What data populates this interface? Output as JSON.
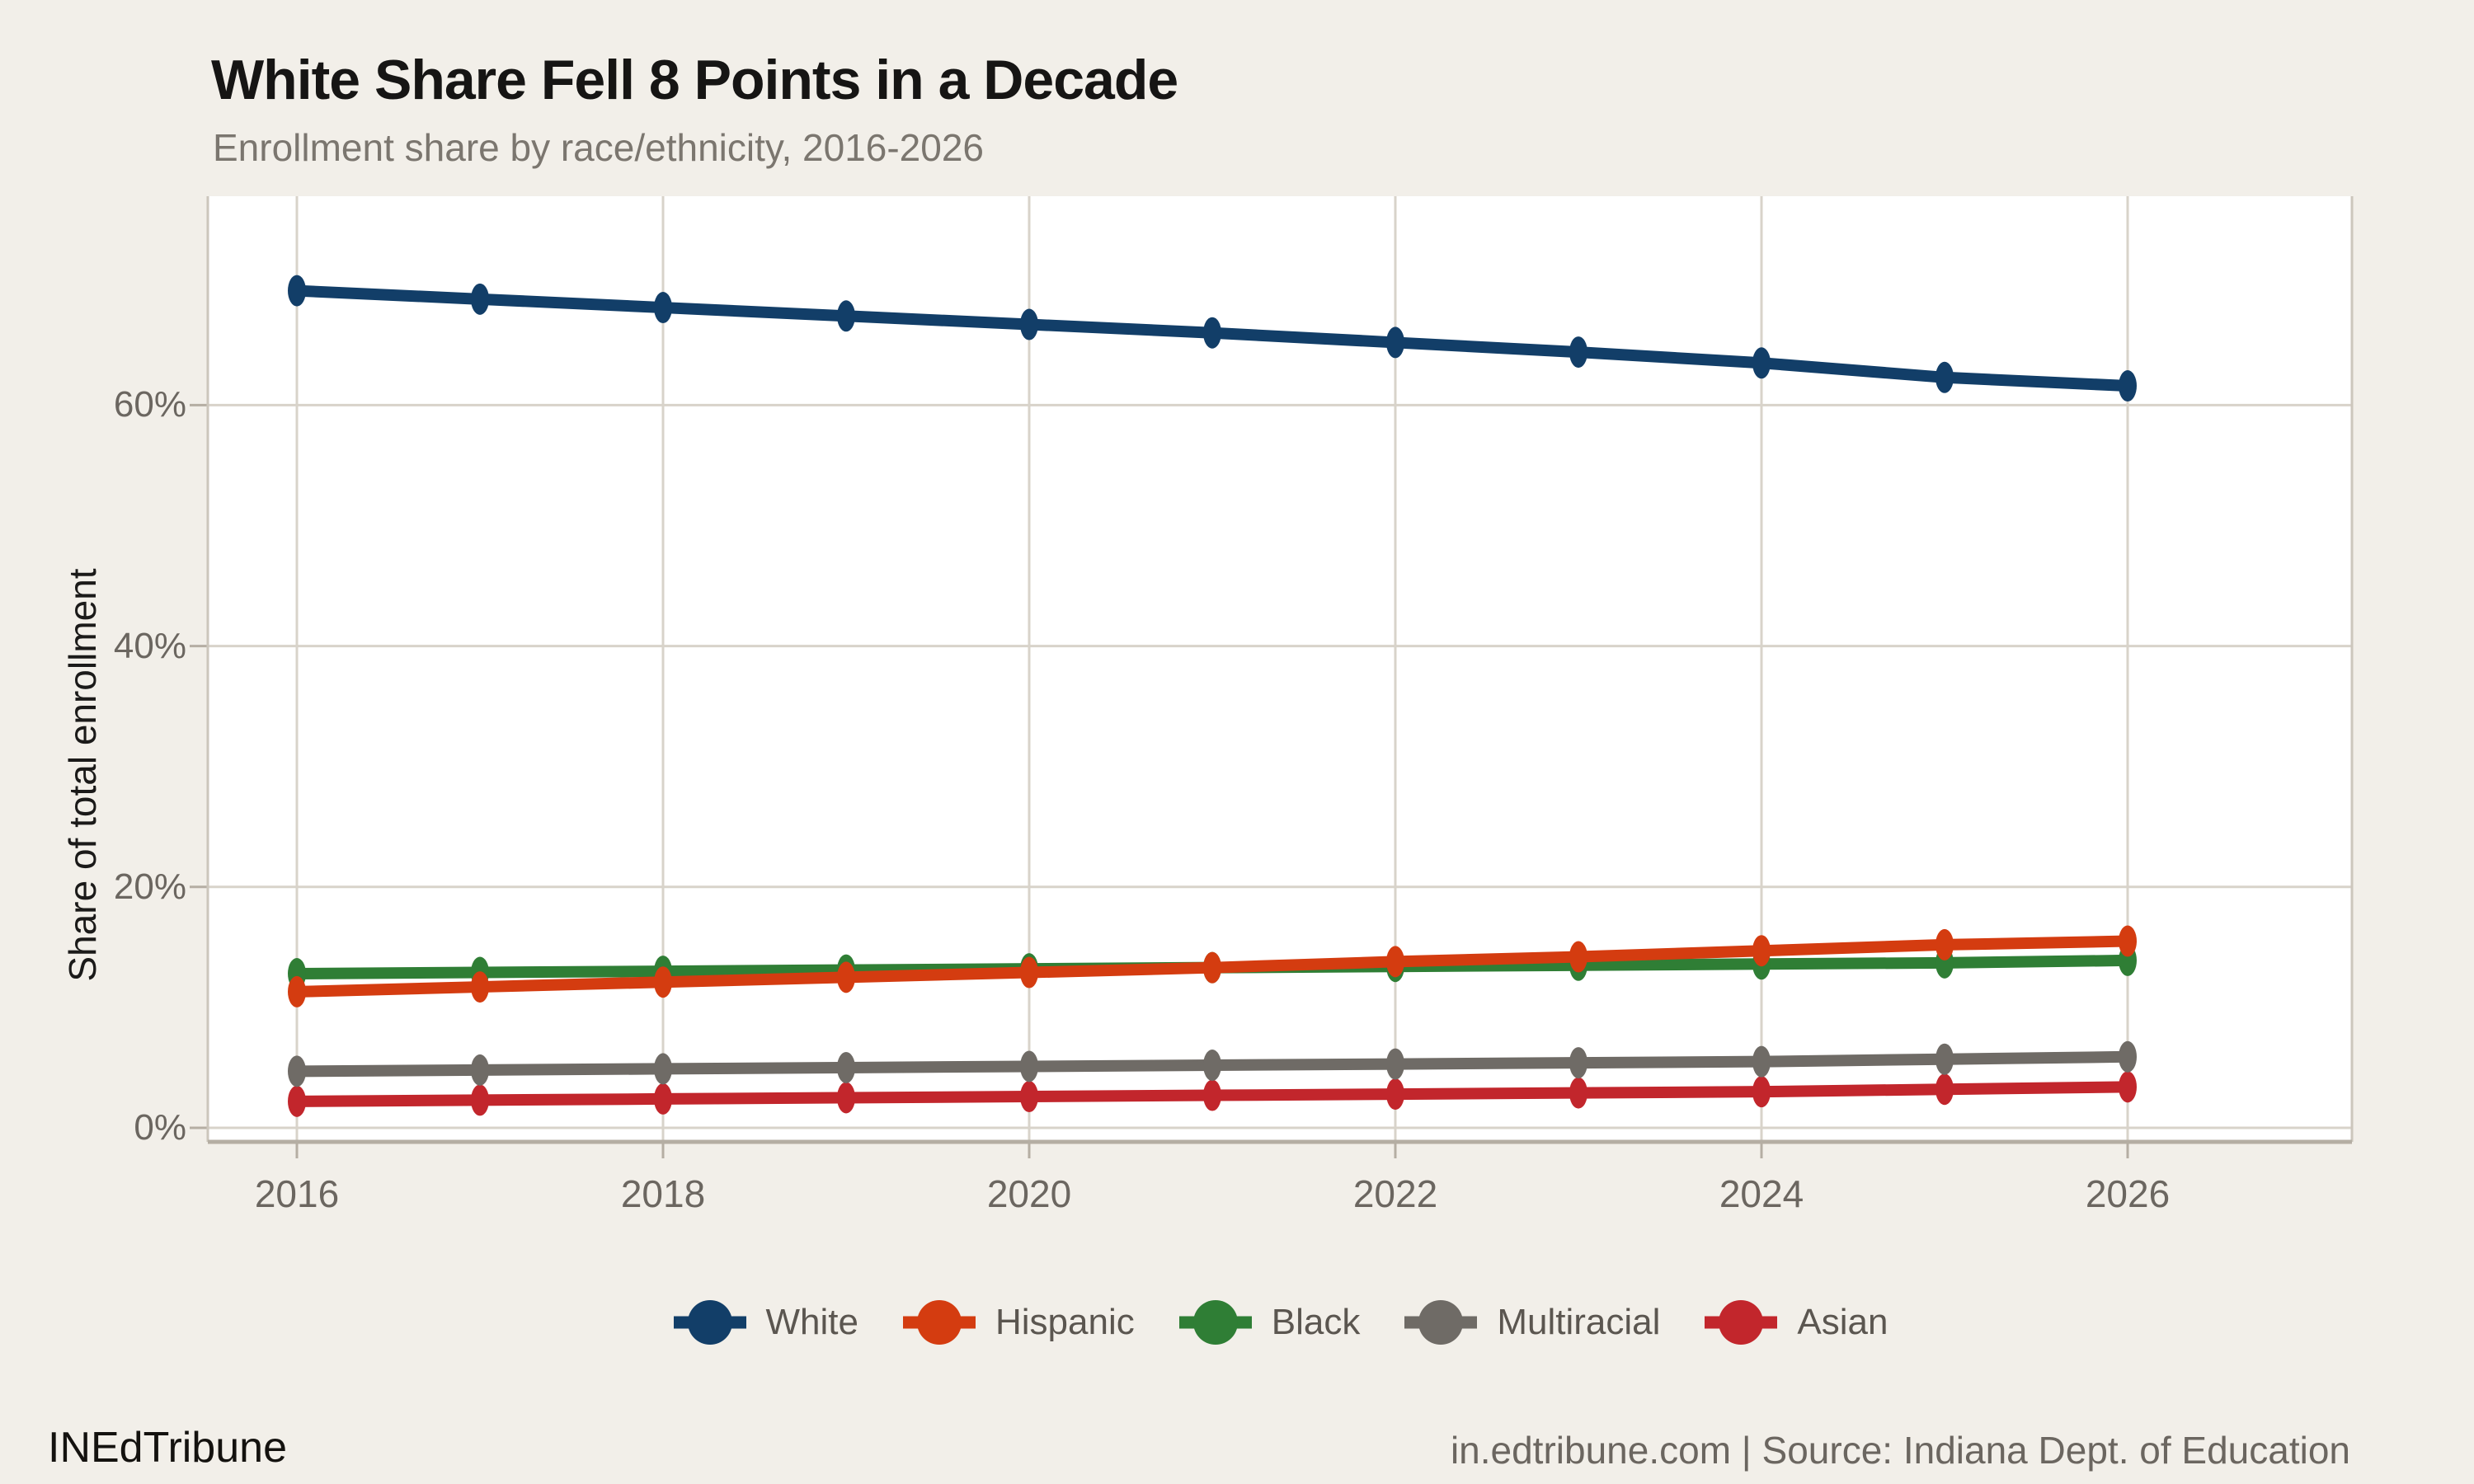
{
  "header": {
    "title": "White Share Fell 8 Points in a Decade",
    "subtitle": "Enrollment share by race/ethnicity, 2016-2026"
  },
  "footer": {
    "brand": "INEdTribune",
    "source": "in.edtribune.com | Source: Indiana Dept. of Education"
  },
  "colors": {
    "background": "#f2efe9",
    "panel": "#ffffff",
    "gridline": "#d8d3ca",
    "axis_line": "#b5aea3",
    "panel_edge": "#ccc6bc",
    "tick_text": "#6b6660",
    "title_text": "#161514",
    "subtitle_text": "#7b766f",
    "legend_text": "#5b5650"
  },
  "chart_data": {
    "type": "line",
    "title": "White Share Fell 8 Points in a Decade",
    "subtitle": "Enrollment share by race/ethnicity, 2016-2026",
    "xlabel": "",
    "ylabel": "Share of total enrollment",
    "x": [
      2016,
      2017,
      2018,
      2019,
      2020,
      2021,
      2022,
      2023,
      2024,
      2025,
      2026
    ],
    "series": [
      {
        "name": "White",
        "color": "#123e68",
        "values": [
          69.5,
          68.8,
          68.1,
          67.4,
          66.7,
          66.0,
          65.2,
          64.4,
          63.5,
          62.3,
          61.6
        ]
      },
      {
        "name": "Hispanic",
        "color": "#d43c10",
        "values": [
          11.3,
          11.7,
          12.1,
          12.5,
          12.9,
          13.3,
          13.8,
          14.2,
          14.7,
          15.2,
          15.5
        ]
      },
      {
        "name": "Black",
        "color": "#2f7e35",
        "values": [
          12.8,
          12.9,
          13.0,
          13.1,
          13.2,
          13.3,
          13.4,
          13.5,
          13.6,
          13.7,
          13.9
        ]
      },
      {
        "name": "Multiracial",
        "color": "#6f6b66",
        "values": [
          4.7,
          4.8,
          4.9,
          5.0,
          5.1,
          5.2,
          5.3,
          5.4,
          5.5,
          5.7,
          5.9
        ]
      },
      {
        "name": "Asian",
        "color": "#c2262c",
        "values": [
          2.2,
          2.3,
          2.4,
          2.5,
          2.6,
          2.7,
          2.8,
          2.9,
          3.0,
          3.2,
          3.4
        ]
      }
    ],
    "xticks": [
      2016,
      2018,
      2020,
      2022,
      2024,
      2026
    ],
    "xtick_labels": [
      "2016",
      "2018",
      "2020",
      "2022",
      "2024",
      "2026"
    ],
    "yticks": [
      0,
      20,
      40,
      60
    ],
    "ytick_labels": [
      "0%",
      "20%",
      "40%",
      "60%"
    ],
    "ylim": [
      -1.2,
      77.3
    ],
    "grid": true,
    "legend_position": "bottom"
  }
}
